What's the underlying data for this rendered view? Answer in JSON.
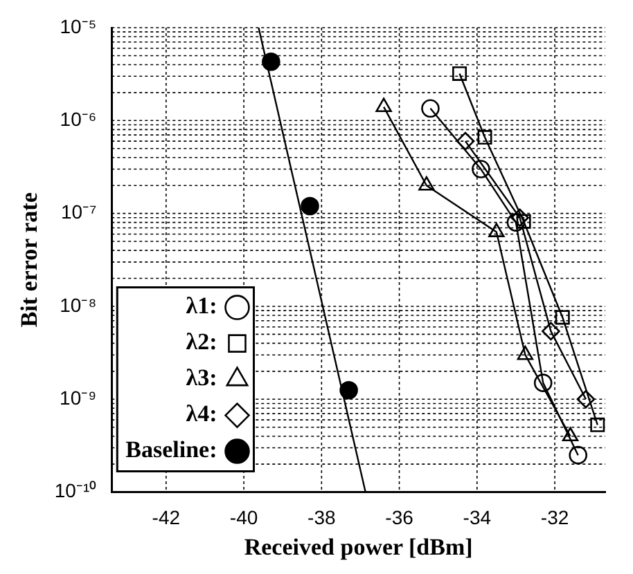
{
  "chart_data": {
    "type": "line",
    "xlabel": "Received power [dBm]",
    "ylabel": "Bit error rate",
    "xlim": [
      -43.4,
      -30.7
    ],
    "xticks": [
      -42,
      -40,
      -38,
      -36,
      -34,
      -32
    ],
    "ylim": [
      1e-10,
      1e-05
    ],
    "yticks": [
      {
        "value": 1e-10,
        "label": "10⁻¹⁰"
      },
      {
        "value": 1e-09,
        "label": "10⁻⁹"
      },
      {
        "value": 1e-08,
        "label": "10⁻⁸"
      },
      {
        "value": 1e-07,
        "label": "10⁻⁷"
      },
      {
        "value": 1e-06,
        "label": "10⁻⁶"
      },
      {
        "value": 1e-05,
        "label": "10⁻⁵"
      }
    ],
    "log": "y",
    "grid": true,
    "legend": "bottom left",
    "line_style": "solid",
    "series": [
      {
        "name": "λ1:",
        "color": "#000000",
        "marker": "circle",
        "x": [
          -35.2,
          -33.9,
          -33.0,
          -32.3,
          -31.4
        ],
        "values": [
          1.35e-06,
          3e-07,
          8e-08,
          1.5e-09,
          2.5e-10
        ]
      },
      {
        "name": "λ2:",
        "color": "#000000",
        "marker": "square",
        "x": [
          -34.45,
          -33.8,
          -32.8,
          -31.8,
          -30.9
        ],
        "values": [
          3.2e-06,
          6.6e-07,
          8.2e-08,
          7.6e-09,
          5.3e-10
        ]
      },
      {
        "name": "λ3:",
        "color": "#000000",
        "marker": "triangle",
        "x": [
          -36.4,
          -35.3,
          -33.5,
          -32.76,
          -31.6
        ],
        "values": [
          1.4e-06,
          2e-07,
          6.3e-08,
          3e-09,
          4e-10
        ]
      },
      {
        "name": "λ4:",
        "color": "#000000",
        "marker": "diamond",
        "x": [
          -34.3,
          -32.9,
          -32.1,
          -31.2
        ],
        "values": [
          6e-07,
          9e-08,
          5.4e-09,
          1e-09
        ]
      },
      {
        "name": "Baseline:",
        "type": "scatter",
        "color": "#000000",
        "marker": "circle",
        "x": [
          -39.3,
          -38.3,
          -37.3
        ],
        "values": [
          4.3e-06,
          1.2e-07,
          1.25e-09
        ]
      },
      {
        "type": "line",
        "color": "#000000",
        "marker": "none",
        "x": [
          -39.62,
          -36.87
        ],
        "values": [
          1e-05,
          1e-10
        ]
      }
    ]
  }
}
